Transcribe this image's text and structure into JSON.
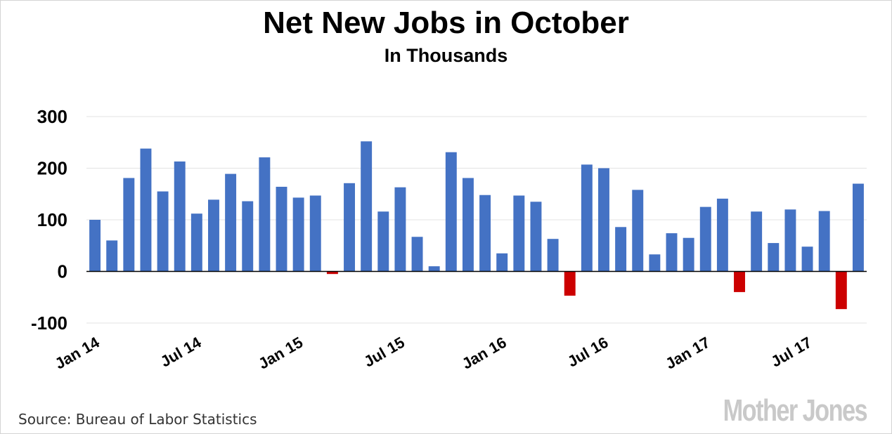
{
  "chart_data": {
    "type": "bar",
    "title": "Net New Jobs in October",
    "subtitle": "In Thousands",
    "xlabel": "",
    "ylabel": "",
    "ylim": [
      -100,
      300
    ],
    "yticks": [
      300,
      200,
      100,
      0,
      -100
    ],
    "grid": true,
    "x_tick_labels": [
      {
        "label": "Jan 14",
        "index": 0
      },
      {
        "label": "Jul 14",
        "index": 6
      },
      {
        "label": "Jan 15",
        "index": 12
      },
      {
        "label": "Jul 15",
        "index": 18
      },
      {
        "label": "Jan 16",
        "index": 24
      },
      {
        "label": "Jul 16",
        "index": 30
      },
      {
        "label": "Jan 17",
        "index": 36
      },
      {
        "label": "Jul 17",
        "index": 42
      }
    ],
    "values": [
      100,
      60,
      181,
      238,
      155,
      213,
      112,
      139,
      189,
      136,
      221,
      164,
      143,
      147,
      -5,
      171,
      252,
      116,
      163,
      67,
      10,
      231,
      181,
      148,
      35,
      147,
      135,
      63,
      -47,
      207,
      200,
      86,
      158,
      33,
      74,
      65,
      125,
      141,
      -40,
      116,
      55,
      120,
      48,
      117,
      -73,
      170
    ],
    "positive_color": "#4472c4",
    "negative_color": "#cc0000"
  },
  "source": "Source: Bureau of Labor Statistics",
  "logo": "Mother Jones"
}
